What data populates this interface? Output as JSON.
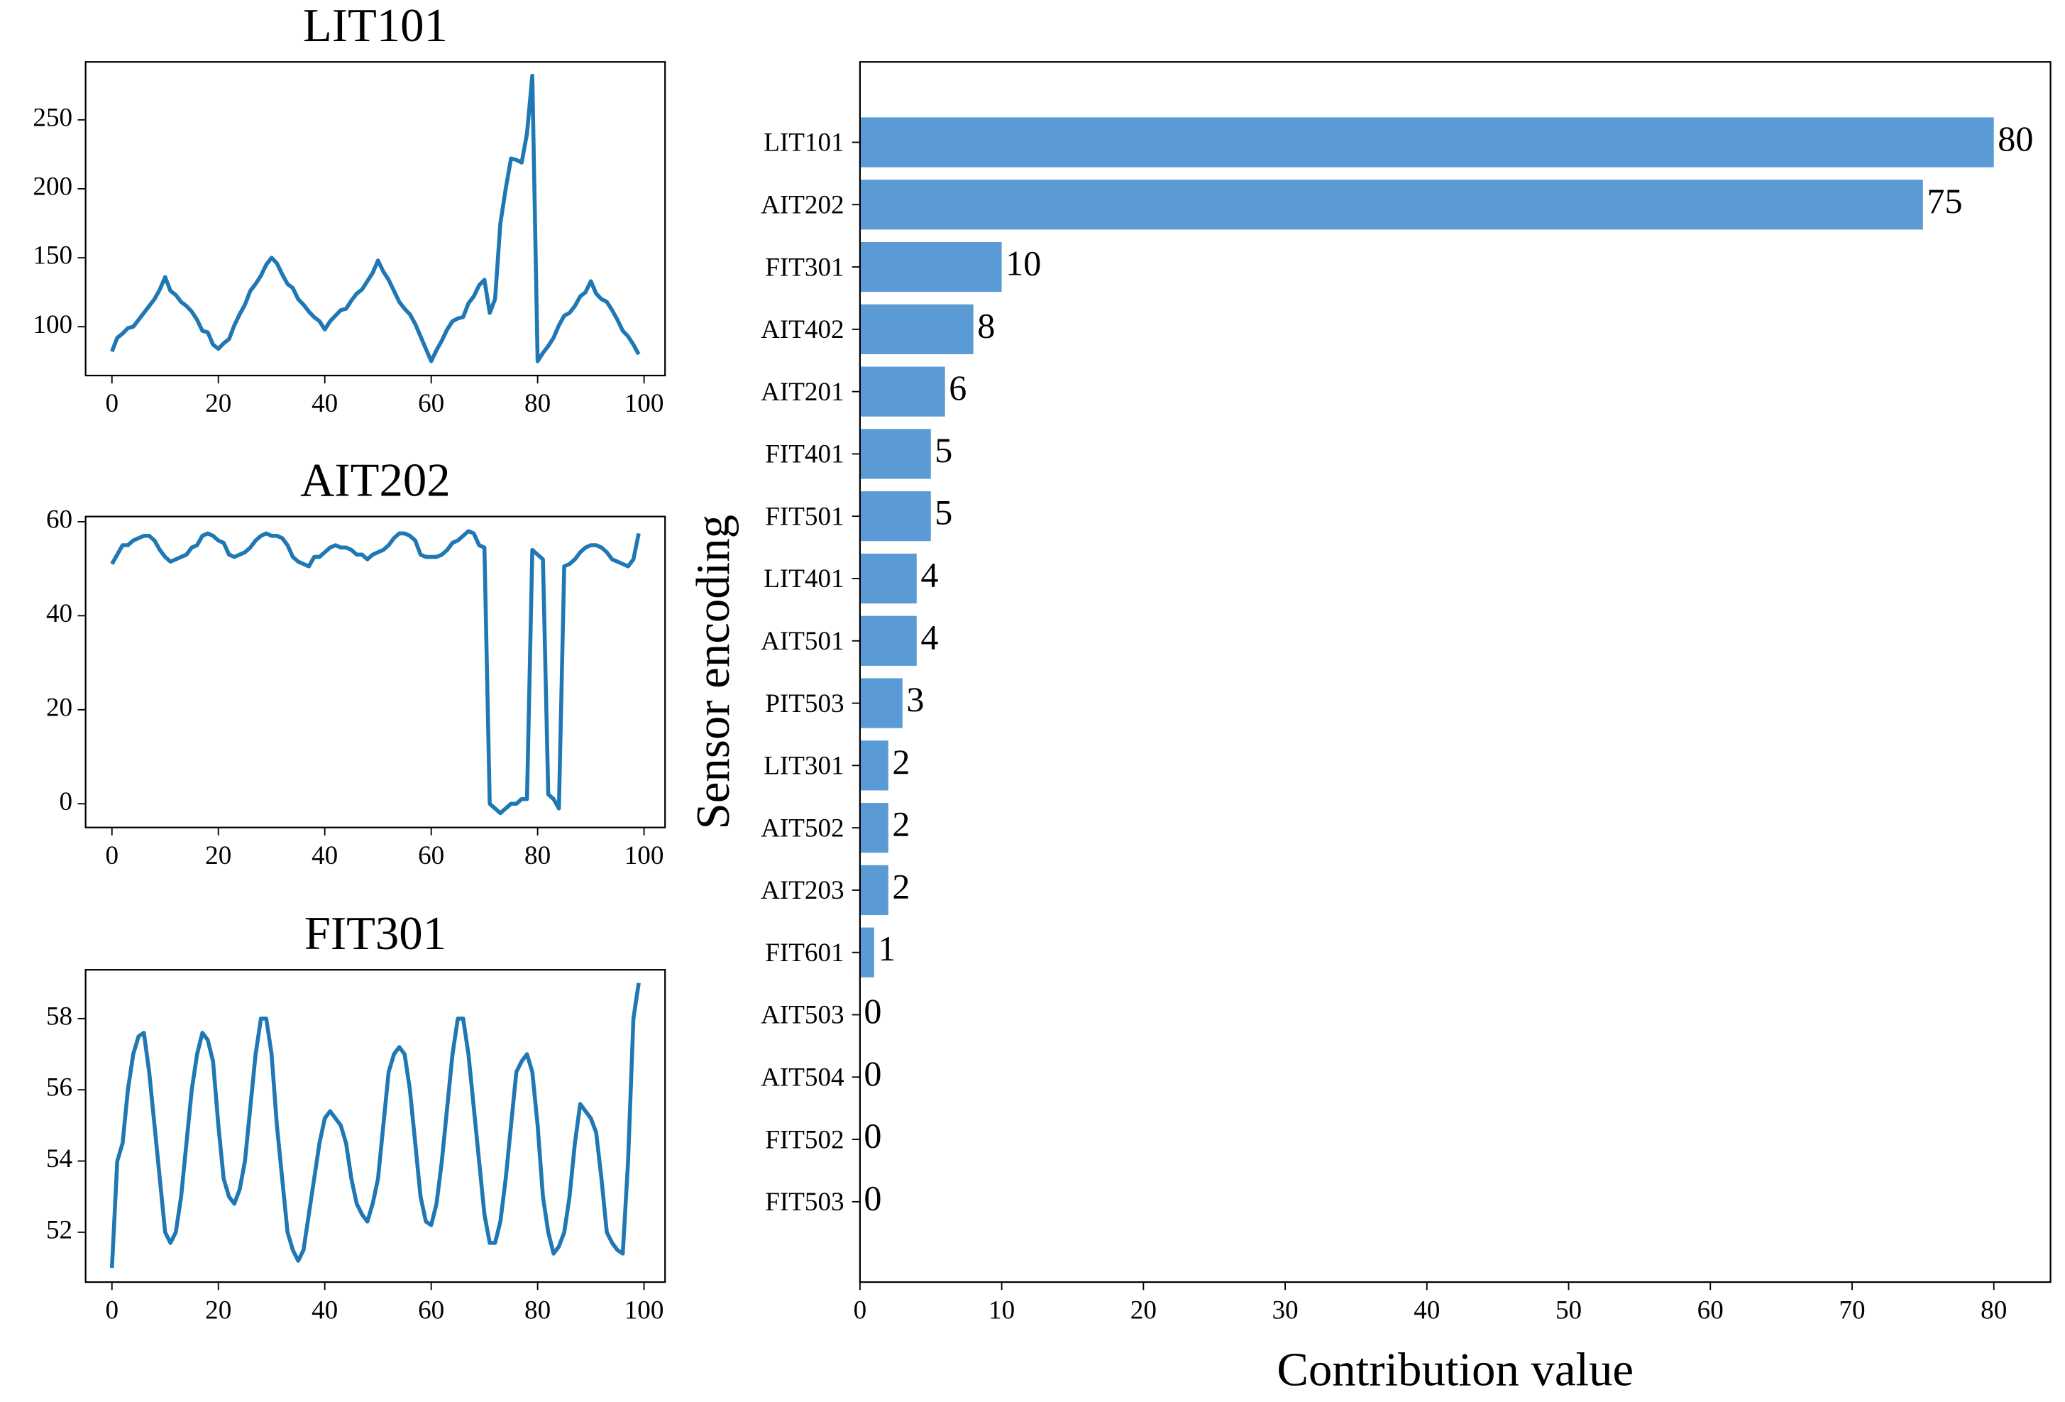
{
  "chart_data": [
    {
      "type": "line",
      "title": "LIT101",
      "x": [
        0,
        1,
        2,
        3,
        4,
        5,
        6,
        7,
        8,
        9,
        10,
        11,
        12,
        13,
        14,
        15,
        16,
        17,
        18,
        19,
        20,
        21,
        22,
        23,
        24,
        25,
        26,
        27,
        28,
        29,
        30,
        31,
        32,
        33,
        34,
        35,
        36,
        37,
        38,
        39,
        40,
        41,
        42,
        43,
        44,
        45,
        46,
        47,
        48,
        49,
        50,
        51,
        52,
        53,
        54,
        55,
        56,
        57,
        58,
        59,
        60,
        61,
        62,
        63,
        64,
        65,
        66,
        67,
        68,
        69,
        70,
        71,
        72,
        73,
        74,
        75,
        76,
        77,
        78,
        79,
        80,
        81,
        82,
        83,
        84,
        85,
        86,
        87,
        88,
        89,
        90,
        91,
        92,
        93,
        94,
        95,
        96,
        97,
        98,
        99
      ],
      "series": [
        {
          "color": "#1f77b4",
          "values": [
            82,
            92,
            95,
            99,
            100,
            105,
            110,
            115,
            120,
            127,
            136,
            126,
            123,
            118,
            115,
            111,
            105,
            97,
            96,
            87,
            84,
            88,
            91,
            101,
            109,
            116,
            126,
            131,
            137,
            145,
            150,
            146,
            138,
            131,
            128,
            120,
            116,
            111,
            107,
            104,
            98,
            104,
            108,
            112,
            113,
            119,
            124,
            127,
            133,
            139,
            148,
            140,
            134,
            126,
            118,
            113,
            109,
            102,
            93,
            84,
            75,
            83,
            90,
            98,
            104,
            106,
            107,
            117,
            122,
            130,
            134,
            110,
            120,
            175,
            200,
            222,
            221,
            219,
            240,
            282,
            75,
            81,
            86,
            92,
            101,
            108,
            110,
            115,
            122,
            125,
            133,
            124,
            120,
            118,
            112,
            105,
            97,
            93,
            87,
            80
          ]
        }
      ],
      "xlim": [
        -4.95,
        103.95
      ],
      "ylim": [
        64.6,
        292
      ],
      "xticks": [
        0,
        20,
        40,
        60,
        80,
        100
      ],
      "yticks": [
        100,
        150,
        200,
        250
      ]
    },
    {
      "type": "line",
      "title": "AIT202",
      "x": [
        0,
        1,
        2,
        3,
        4,
        5,
        6,
        7,
        8,
        9,
        10,
        11,
        12,
        13,
        14,
        15,
        16,
        17,
        18,
        19,
        20,
        21,
        22,
        23,
        24,
        25,
        26,
        27,
        28,
        29,
        30,
        31,
        32,
        33,
        34,
        35,
        36,
        37,
        38,
        39,
        40,
        41,
        42,
        43,
        44,
        45,
        46,
        47,
        48,
        49,
        50,
        51,
        52,
        53,
        54,
        55,
        56,
        57,
        58,
        59,
        60,
        61,
        62,
        63,
        64,
        65,
        66,
        67,
        68,
        69,
        70,
        71,
        72,
        73,
        74,
        75,
        76,
        77,
        78,
        79,
        80,
        81,
        82,
        83,
        84,
        85,
        86,
        87,
        88,
        89,
        90,
        91,
        92,
        93,
        94,
        95,
        96,
        97,
        98,
        99
      ],
      "series": [
        {
          "color": "#1f77b4",
          "values": [
            51,
            53,
            55,
            55,
            56,
            56.5,
            57,
            57,
            56,
            54,
            52.5,
            51.5,
            52,
            52.5,
            53,
            54.5,
            55,
            57,
            57.5,
            57,
            56,
            55.5,
            53,
            52.5,
            53,
            53.5,
            54.5,
            56,
            57,
            57.5,
            57,
            57,
            56.5,
            55,
            52.5,
            51.5,
            51,
            50.5,
            52.5,
            52.5,
            53.5,
            54.5,
            55,
            54.5,
            54.5,
            54,
            53,
            53,
            52,
            53,
            53.5,
            54,
            55,
            56.5,
            57.5,
            57.5,
            57,
            56,
            53,
            52.5,
            52.5,
            52.5,
            53,
            54,
            55.5,
            56,
            57,
            58,
            57.5,
            55,
            54.5,
            0,
            -1,
            -2,
            -1,
            0,
            0,
            1,
            1,
            54,
            53,
            52,
            2,
            1,
            -1,
            50.5,
            51,
            52,
            53.5,
            54.5,
            55,
            55,
            54.5,
            53.5,
            52,
            51.5,
            51,
            50.5,
            52,
            57.5
          ]
        }
      ],
      "xlim": [
        -4.95,
        103.95
      ],
      "ylim": [
        -5.05,
        61.1
      ],
      "xticks": [
        0,
        20,
        40,
        60,
        80,
        100
      ],
      "yticks": [
        0,
        20,
        40,
        60
      ]
    },
    {
      "type": "line",
      "title": "FIT301",
      "x": [
        0,
        1,
        2,
        3,
        4,
        5,
        6,
        7,
        8,
        9,
        10,
        11,
        12,
        13,
        14,
        15,
        16,
        17,
        18,
        19,
        20,
        21,
        22,
        23,
        24,
        25,
        26,
        27,
        28,
        29,
        30,
        31,
        32,
        33,
        34,
        35,
        36,
        37,
        38,
        39,
        40,
        41,
        42,
        43,
        44,
        45,
        46,
        47,
        48,
        49,
        50,
        51,
        52,
        53,
        54,
        55,
        56,
        57,
        58,
        59,
        60,
        61,
        62,
        63,
        64,
        65,
        66,
        67,
        68,
        69,
        70,
        71,
        72,
        73,
        74,
        75,
        76,
        77,
        78,
        79,
        80,
        81,
        82,
        83,
        84,
        85,
        86,
        87,
        88,
        89,
        90,
        91,
        92,
        93,
        94,
        95,
        96,
        97,
        98,
        99
      ],
      "series": [
        {
          "color": "#1f77b4",
          "values": [
            51,
            54,
            54.5,
            56,
            57,
            57.5,
            57.6,
            56.5,
            55,
            53.5,
            52,
            51.7,
            52,
            53,
            54.5,
            56,
            57,
            57.6,
            57.4,
            56.8,
            55,
            53.5,
            53,
            52.8,
            53.2,
            54,
            55.5,
            57,
            58,
            58,
            57,
            55,
            53.5,
            52,
            51.5,
            51.2,
            51.5,
            52.5,
            53.5,
            54.5,
            55.2,
            55.4,
            55.2,
            55,
            54.5,
            53.5,
            52.8,
            52.5,
            52.3,
            52.8,
            53.5,
            55,
            56.5,
            57,
            57.2,
            57,
            56,
            54.5,
            53,
            52.3,
            52.2,
            52.8,
            54,
            55.5,
            57,
            58,
            58,
            57,
            55.5,
            54,
            52.5,
            51.7,
            51.7,
            52.3,
            53.5,
            55,
            56.5,
            56.8,
            57,
            56.5,
            55,
            53,
            52,
            51.4,
            51.6,
            52,
            53,
            54.5,
            55.6,
            55.4,
            55.2,
            54.8,
            53.5,
            52,
            51.7,
            51.5,
            51.4,
            54,
            58,
            59
          ]
        }
      ],
      "xlim": [
        -4.95,
        103.95
      ],
      "ylim": [
        50.6,
        59.37
      ],
      "xticks": [
        0,
        20,
        40,
        60,
        80,
        100
      ],
      "yticks": [
        52,
        54,
        56,
        58
      ]
    },
    {
      "type": "barh",
      "xlabel": "Contribution value",
      "ylabel": "Sensor encoding",
      "categories": [
        "LIT101",
        "AIT202",
        "FIT301",
        "AIT402",
        "AIT201",
        "FIT401",
        "FIT501",
        "LIT401",
        "AIT501",
        "PIT503",
        "LIT301",
        "AIT502",
        "AIT203",
        "FIT601",
        "AIT503",
        "AIT504",
        "FIT502",
        "FIT503"
      ],
      "values": [
        80,
        75,
        10,
        8,
        6,
        5,
        5,
        4,
        4,
        3,
        2,
        2,
        2,
        1,
        0,
        0,
        0,
        0
      ],
      "color": "#5b9bd5",
      "xlim": [
        0,
        84
      ],
      "xticks": [
        0,
        10,
        20,
        30,
        40,
        50,
        60,
        70,
        80
      ]
    }
  ]
}
